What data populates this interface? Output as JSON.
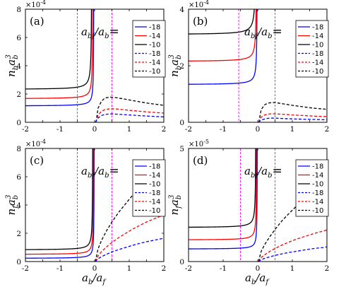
{
  "colors": {
    "blue": "#0000ff",
    "red": "#ff0000",
    "black": "#000000",
    "magenta": "#ff00ff"
  },
  "figure_text": {
    "legend_heading_main": "a",
    "legend_heading_sub1": "bf",
    "legend_heading_mid": "/a",
    "legend_heading_sub2": "b",
    "legend_heading_eq": "=",
    "x_label_a": "a",
    "x_label_sub_b": "b",
    "x_label_slash": "/a",
    "x_label_sub_f": "f"
  },
  "chart_data": [
    {
      "type": "line",
      "panel_label": "(a)",
      "y_label_main": "n",
      "y_label_sub": "b",
      "y_label_a": "a",
      "y_label_asub": "b",
      "y_label_sup": "3",
      "scale_label": "×10",
      "scale_exp": "-4",
      "xlim": [
        -2,
        2
      ],
      "ylim": [
        0,
        8
      ],
      "x_ticks": [
        "-2",
        "-1.5",
        "-1",
        "-0.5",
        "0",
        "0.5",
        "1",
        "1.5",
        "2"
      ],
      "y_ticks": [
        "0",
        "2",
        "4",
        "6",
        "8"
      ],
      "vlines": [
        -0.5,
        0.5
      ],
      "legend": [
        "-18",
        "-14",
        "-10",
        "-18",
        "-14",
        "-10"
      ],
      "solid": [
        {
          "color": "black",
          "base": 2.32,
          "a": 0.07,
          "c": -0.08
        },
        {
          "color": "red",
          "base": 1.66,
          "a": 0.055,
          "c": -0.05
        },
        {
          "color": "blue",
          "base": 1.15,
          "a": 0.045,
          "c": -0.02
        }
      ],
      "dashed": [
        {
          "color": "black",
          "x": [
            0.04,
            0.1,
            0.2,
            0.3,
            0.45,
            0.6,
            0.8,
            1.0,
            1.3,
            1.6,
            2.0
          ],
          "y": [
            0,
            1.0,
            1.5,
            1.72,
            1.78,
            1.75,
            1.67,
            1.58,
            1.45,
            1.33,
            1.2
          ]
        },
        {
          "color": "red",
          "x": [
            0.03,
            0.1,
            0.2,
            0.3,
            0.45,
            0.6,
            0.8,
            1.0,
            1.3,
            1.6,
            2.0
          ],
          "y": [
            0,
            0.5,
            0.78,
            0.9,
            0.96,
            0.95,
            0.9,
            0.85,
            0.78,
            0.72,
            0.65
          ]
        },
        {
          "color": "blue",
          "x": [
            0.02,
            0.1,
            0.2,
            0.3,
            0.45,
            0.6,
            0.8,
            1.0,
            1.3,
            1.6,
            2.0
          ],
          "y": [
            0,
            0.3,
            0.48,
            0.56,
            0.59,
            0.58,
            0.55,
            0.52,
            0.47,
            0.43,
            0.38
          ]
        }
      ]
    },
    {
      "type": "line",
      "panel_label": "(b)",
      "y_label_main": "n",
      "y_label_sub": "b",
      "y_label_a": "a",
      "y_label_asub": "b",
      "y_label_sup": "3",
      "scale_label": "×10",
      "scale_exp": "-4",
      "xlim": [
        -2,
        2
      ],
      "ylim": [
        0,
        4
      ],
      "x_ticks": [
        "-2",
        "-1.5",
        "-1",
        "-0.5",
        "0",
        "0.5",
        "1",
        "1.5",
        "2"
      ],
      "y_ticks": [
        "0",
        "2",
        "4"
      ],
      "vlines": [
        -0.55,
        0.5
      ],
      "legend": [
        "-18",
        "-14",
        "-10",
        "-18",
        "-14",
        "-10"
      ],
      "solid": [
        {
          "color": "black",
          "base": 3.1,
          "a": 0.045,
          "c": -0.05
        },
        {
          "color": "red",
          "base": 2.15,
          "a": 0.035,
          "c": -0.03
        },
        {
          "color": "blue",
          "base": 1.33,
          "a": 0.03,
          "c": -0.01
        }
      ],
      "dashed": [
        {
          "color": "black",
          "x": [
            0.03,
            0.1,
            0.2,
            0.3,
            0.45,
            0.6,
            0.8,
            1.0,
            1.3,
            1.6,
            2.0
          ],
          "y": [
            0,
            0.45,
            0.62,
            0.68,
            0.7,
            0.68,
            0.64,
            0.6,
            0.55,
            0.5,
            0.46
          ]
        },
        {
          "color": "red",
          "x": [
            0.02,
            0.1,
            0.2,
            0.3,
            0.45,
            0.6,
            0.8,
            1.0,
            1.3,
            1.6,
            2.0
          ],
          "y": [
            0,
            0.18,
            0.26,
            0.29,
            0.3,
            0.29,
            0.28,
            0.26,
            0.24,
            0.22,
            0.2
          ]
        },
        {
          "color": "blue",
          "x": [
            0.02,
            0.1,
            0.2,
            0.3,
            0.45,
            0.6,
            0.8,
            1.0,
            1.3,
            1.6,
            2.0
          ],
          "y": [
            0,
            0.08,
            0.12,
            0.14,
            0.15,
            0.14,
            0.13,
            0.12,
            0.11,
            0.1,
            0.09
          ]
        }
      ]
    },
    {
      "type": "line",
      "panel_label": "(c)",
      "y_label_main": "n",
      "y_label_sub": "f",
      "y_label_a": "a",
      "y_label_asub": "b",
      "y_label_sup": "3",
      "scale_label": "×10",
      "scale_exp": "-4",
      "xlim": [
        -2,
        2
      ],
      "ylim": [
        0,
        8
      ],
      "x_ticks": [
        "-2",
        "-1.5",
        "-1",
        "-0.5",
        "0",
        "0.5",
        "1",
        "1.5",
        "2"
      ],
      "y_ticks": [
        "0",
        "2",
        "4",
        "6",
        "8"
      ],
      "vlines": [
        -0.5,
        0.5
      ],
      "legend": [
        "-18",
        "-14",
        "-10",
        "-18",
        "-14",
        "-10"
      ],
      "solid": [
        {
          "color": "black",
          "base": 0.82,
          "a": 0.05,
          "c": -0.05
        },
        {
          "color": "red",
          "base": 0.5,
          "a": 0.04,
          "c": -0.03
        },
        {
          "color": "blue",
          "base": 0.22,
          "a": 0.035,
          "c": -0.01
        }
      ],
      "dashed": [
        {
          "color": "black",
          "x": [
            0.02,
            0.1,
            0.2,
            0.35,
            0.5,
            0.7,
            0.9,
            1.1,
            1.3,
            1.5,
            1.7,
            1.9,
            2.0
          ],
          "y": [
            0,
            0.9,
            1.5,
            2.2,
            2.8,
            3.5,
            4.1,
            4.7,
            5.2,
            5.7,
            6.1,
            6.5,
            6.6
          ]
        },
        {
          "color": "red",
          "x": [
            0.02,
            0.1,
            0.2,
            0.35,
            0.5,
            0.7,
            0.9,
            1.1,
            1.3,
            1.5,
            1.7,
            1.9,
            2.0
          ],
          "y": [
            0,
            0.4,
            0.7,
            1.05,
            1.35,
            1.7,
            2.0,
            2.3,
            2.55,
            2.8,
            3.0,
            3.2,
            3.3
          ]
        },
        {
          "color": "blue",
          "x": [
            0.02,
            0.1,
            0.2,
            0.35,
            0.5,
            0.7,
            0.9,
            1.1,
            1.3,
            1.5,
            1.7,
            1.9,
            2.0
          ],
          "y": [
            0,
            0.2,
            0.35,
            0.52,
            0.68,
            0.85,
            1.0,
            1.15,
            1.28,
            1.4,
            1.5,
            1.6,
            1.65
          ]
        }
      ]
    },
    {
      "type": "line",
      "panel_label": "(d)",
      "y_label_main": "n",
      "y_label_sub": "f",
      "y_label_a": "a",
      "y_label_asub": "b",
      "y_label_sup": "3",
      "scale_label": "×10",
      "scale_exp": "-5",
      "xlim": [
        -2,
        2
      ],
      "ylim": [
        0,
        5
      ],
      "x_ticks": [
        "-2",
        "-1",
        "0",
        "1",
        "2"
      ],
      "y_ticks": [
        "0",
        "5"
      ],
      "vlines": [
        -0.5,
        0.5
      ],
      "legend": [
        "-18",
        "-14",
        "-10",
        "-18",
        "-14",
        "-10"
      ],
      "solid": [
        {
          "color": "black",
          "base": 1.5,
          "a": 0.035,
          "c": -0.05
        },
        {
          "color": "red",
          "base": 0.95,
          "a": 0.028,
          "c": -0.03
        },
        {
          "color": "blue",
          "base": 0.55,
          "a": 0.022,
          "c": -0.01
        }
      ],
      "dashed": [
        {
          "color": "black",
          "x": [
            0.02,
            0.1,
            0.2,
            0.35,
            0.5,
            0.7,
            0.9,
            1.1,
            1.3,
            1.5,
            1.7,
            1.9,
            2.0
          ],
          "y": [
            0,
            0.45,
            0.75,
            1.1,
            1.42,
            1.8,
            2.12,
            2.42,
            2.7,
            2.95,
            3.15,
            3.35,
            3.45
          ]
        },
        {
          "color": "red",
          "x": [
            0.02,
            0.1,
            0.2,
            0.35,
            0.5,
            0.7,
            0.9,
            1.1,
            1.3,
            1.5,
            1.7,
            1.9,
            2.0
          ],
          "y": [
            0,
            0.18,
            0.3,
            0.45,
            0.58,
            0.73,
            0.86,
            0.98,
            1.08,
            1.18,
            1.27,
            1.35,
            1.4
          ]
        },
        {
          "color": "blue",
          "x": [
            0.02,
            0.1,
            0.2,
            0.35,
            0.5,
            0.7,
            0.9,
            1.1,
            1.3,
            1.5,
            1.7,
            1.9,
            2.0
          ],
          "y": [
            0,
            0.08,
            0.14,
            0.21,
            0.27,
            0.34,
            0.4,
            0.45,
            0.5,
            0.55,
            0.59,
            0.62,
            0.65
          ]
        }
      ]
    }
  ]
}
